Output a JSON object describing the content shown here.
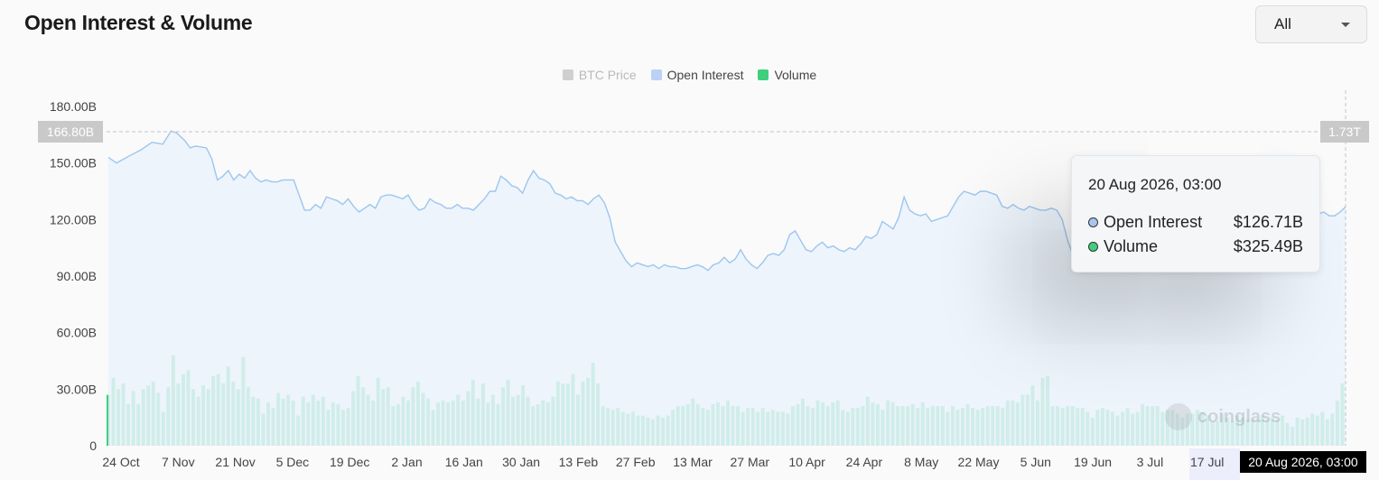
{
  "header": {
    "title": "Open Interest & Volume"
  },
  "range_select": {
    "value": "All",
    "caret_icon": "chevron-down-icon"
  },
  "legend": [
    {
      "label": "BTC Price",
      "color": "#cfcfcf",
      "text_color": "#b9b9b9"
    },
    {
      "label": "Open Interest",
      "color": "#bcd1f5",
      "text_color": "#444444"
    },
    {
      "label": "Volume",
      "color": "#3fcf7d",
      "text_color": "#444444"
    }
  ],
  "tooltip": {
    "date": "20 Aug 2026, 03:00",
    "rows": [
      {
        "label": "Open Interest",
        "value": "$126.71B",
        "dot_color": "#a9c4ef"
      },
      {
        "label": "Volume",
        "value": "$325.49B",
        "dot_color": "#3fcf7d"
      }
    ]
  },
  "crosshair": {
    "left_value": "166.80B",
    "right_value": "1.73T",
    "date": "20 Aug 2026, 03:00"
  },
  "watermark": {
    "text": "coinglass"
  },
  "chart_data": {
    "type": "line",
    "title": "Open Interest & Volume",
    "ylim": [
      0,
      180
    ],
    "y_ticks": [
      "0",
      "30.00B",
      "60.00B",
      "90.00B",
      "120.00B",
      "150.00B",
      "180.00B"
    ],
    "x_ticks": [
      "24 Oct",
      "7 Nov",
      "21 Nov",
      "5 Dec",
      "19 Dec",
      "2 Jan",
      "16 Jan",
      "30 Jan",
      "13 Feb",
      "27 Feb",
      "13 Mar",
      "27 Mar",
      "10 Apr",
      "24 Apr",
      "8 May",
      "22 May",
      "5 Jun",
      "19 Jun",
      "3 Jul",
      "17 Jul"
    ],
    "grid": false,
    "legend_position": "top-center",
    "series": [
      {
        "name": "Open Interest",
        "color": "#9cc6ef",
        "fill": "#eaf2fb",
        "points": [
          [
            0,
            153
          ],
          [
            1.5,
            150
          ],
          [
            4,
            154
          ],
          [
            6,
            157
          ],
          [
            8,
            161
          ],
          [
            10,
            160
          ],
          [
            11.5,
            167
          ],
          [
            12.5,
            166
          ],
          [
            14,
            162
          ],
          [
            15,
            158
          ],
          [
            16,
            159
          ],
          [
            18,
            158
          ],
          [
            19,
            152
          ],
          [
            20,
            141
          ],
          [
            21,
            143
          ],
          [
            22,
            146
          ],
          [
            23,
            141
          ],
          [
            24,
            144
          ],
          [
            25,
            142
          ],
          [
            26,
            146
          ],
          [
            27,
            142
          ],
          [
            28,
            140
          ],
          [
            29,
            141
          ],
          [
            30,
            140
          ],
          [
            31,
            140
          ],
          [
            32,
            141
          ],
          [
            34,
            141
          ],
          [
            35,
            133
          ],
          [
            36,
            125
          ],
          [
            37,
            125
          ],
          [
            38,
            128
          ],
          [
            39,
            126
          ],
          [
            40,
            132
          ],
          [
            41,
            131
          ],
          [
            42,
            130
          ],
          [
            43,
            128
          ],
          [
            44,
            131
          ],
          [
            45,
            127
          ],
          [
            46,
            124
          ],
          [
            47,
            126
          ],
          [
            48,
            128
          ],
          [
            49,
            126
          ],
          [
            50,
            132
          ],
          [
            51,
            133
          ],
          [
            52,
            133
          ],
          [
            53,
            132
          ],
          [
            54,
            131
          ],
          [
            55,
            133
          ],
          [
            56,
            128
          ],
          [
            57,
            125
          ],
          [
            58,
            126
          ],
          [
            59,
            131
          ],
          [
            60,
            129
          ],
          [
            61,
            128
          ],
          [
            62,
            126
          ],
          [
            63,
            126
          ],
          [
            64,
            128
          ],
          [
            65,
            126
          ],
          [
            66,
            126
          ],
          [
            67,
            125
          ],
          [
            68,
            128
          ],
          [
            69,
            131
          ],
          [
            70,
            135
          ],
          [
            71,
            135
          ],
          [
            72,
            143
          ],
          [
            73,
            141
          ],
          [
            74,
            138
          ],
          [
            75,
            137
          ],
          [
            76,
            134
          ],
          [
            77,
            141
          ],
          [
            78,
            146
          ],
          [
            79,
            142
          ],
          [
            80,
            141
          ],
          [
            81,
            139
          ],
          [
            82,
            134
          ],
          [
            83,
            133
          ],
          [
            84,
            131
          ],
          [
            85,
            132
          ],
          [
            86,
            130
          ],
          [
            87,
            130
          ],
          [
            88,
            128
          ],
          [
            89,
            131
          ],
          [
            90,
            133
          ],
          [
            91,
            129
          ],
          [
            92,
            121
          ],
          [
            93,
            108
          ],
          [
            94,
            103
          ],
          [
            95,
            98
          ],
          [
            96,
            95
          ],
          [
            97,
            97
          ],
          [
            98,
            96
          ],
          [
            99,
            95
          ],
          [
            100,
            96
          ],
          [
            101,
            94
          ],
          [
            102,
            96
          ],
          [
            103,
            95
          ],
          [
            104,
            95
          ],
          [
            105,
            94
          ],
          [
            106,
            94
          ],
          [
            107,
            95
          ],
          [
            108,
            96
          ],
          [
            109,
            95
          ],
          [
            110,
            93
          ],
          [
            111,
            96
          ],
          [
            112,
            97
          ],
          [
            113,
            100
          ],
          [
            114,
            97
          ],
          [
            115,
            99
          ],
          [
            116,
            104
          ],
          [
            117,
            99
          ],
          [
            118,
            96
          ],
          [
            119,
            94
          ],
          [
            120,
            97
          ],
          [
            121,
            101
          ],
          [
            122,
            102
          ],
          [
            123,
            101
          ],
          [
            124,
            104
          ],
          [
            125,
            112
          ],
          [
            126,
            114
          ],
          [
            127,
            109
          ],
          [
            128,
            104
          ],
          [
            129,
            103
          ],
          [
            130,
            106
          ],
          [
            131,
            108
          ],
          [
            132,
            105
          ],
          [
            133,
            106
          ],
          [
            134,
            104
          ],
          [
            135,
            103
          ],
          [
            136,
            105
          ],
          [
            137,
            104
          ],
          [
            138,
            107
          ],
          [
            139,
            111
          ],
          [
            140,
            110
          ],
          [
            141,
            112
          ],
          [
            142,
            119
          ],
          [
            143,
            117
          ],
          [
            144,
            115
          ],
          [
            145,
            121
          ],
          [
            146,
            132
          ],
          [
            147,
            125
          ],
          [
            148,
            123
          ],
          [
            149,
            122
          ],
          [
            150,
            123
          ],
          [
            151,
            119
          ],
          [
            152,
            120
          ],
          [
            153,
            121
          ],
          [
            154,
            122
          ],
          [
            155,
            127
          ],
          [
            156,
            132
          ],
          [
            157,
            135
          ],
          [
            158,
            134
          ],
          [
            159,
            133
          ],
          [
            160,
            135
          ],
          [
            161,
            135
          ],
          [
            162,
            134
          ],
          [
            163,
            133
          ],
          [
            164,
            127
          ],
          [
            165,
            126
          ],
          [
            166,
            128
          ],
          [
            167,
            126
          ],
          [
            168,
            125
          ],
          [
            169,
            127
          ],
          [
            170,
            126
          ],
          [
            171,
            125
          ],
          [
            172,
            125
          ],
          [
            173,
            126
          ],
          [
            174,
            125
          ],
          [
            175,
            120
          ],
          [
            176,
            109
          ],
          [
            177,
            101
          ],
          [
            178,
            102
          ],
          [
            179,
            101
          ],
          [
            180,
            104
          ],
          [
            181,
            103
          ],
          [
            182,
            104
          ],
          [
            183,
            106
          ],
          [
            184,
            108
          ],
          [
            185,
            110
          ],
          [
            186,
            112
          ],
          [
            187,
            113
          ],
          [
            188,
            115
          ],
          [
            189,
            117
          ],
          [
            190,
            118
          ],
          [
            191,
            117
          ],
          [
            192,
            119
          ],
          [
            193,
            120
          ],
          [
            194,
            118
          ],
          [
            195,
            119
          ],
          [
            196,
            121
          ],
          [
            197,
            122
          ],
          [
            198,
            120
          ],
          [
            199,
            122
          ],
          [
            200,
            122
          ],
          [
            201,
            123
          ],
          [
            202,
            121
          ],
          [
            203,
            123
          ],
          [
            204,
            125
          ],
          [
            205,
            124
          ],
          [
            206,
            123
          ],
          [
            207,
            124
          ],
          [
            208,
            125
          ],
          [
            209,
            124
          ],
          [
            210,
            124
          ],
          [
            211,
            123
          ],
          [
            212,
            124
          ],
          [
            213,
            123
          ],
          [
            214,
            124
          ],
          [
            215,
            124
          ],
          [
            216,
            123
          ],
          [
            217,
            122
          ],
          [
            218,
            121
          ],
          [
            219,
            122
          ],
          [
            220,
            121
          ],
          [
            221,
            122
          ],
          [
            222,
            123
          ],
          [
            223,
            124
          ],
          [
            224,
            122
          ],
          [
            225,
            122
          ],
          [
            226,
            124
          ],
          [
            227,
            126.71
          ]
        ]
      },
      {
        "name": "Volume",
        "color": "#3fcf7d",
        "values": [
          27,
          36,
          30,
          33,
          22,
          29,
          22,
          30,
          32,
          34,
          28,
          18,
          31,
          48,
          33,
          38,
          40,
          30,
          26,
          32,
          30,
          37,
          38,
          33,
          42,
          34,
          30,
          47,
          31,
          26,
          25,
          17,
          23,
          20,
          28,
          25,
          27,
          24,
          16,
          26,
          23,
          27,
          24,
          26,
          19,
          23,
          22,
          19,
          20,
          29,
          37,
          31,
          27,
          24,
          36,
          30,
          31,
          21,
          22,
          26,
          24,
          31,
          34,
          28,
          25,
          19,
          23,
          24,
          23,
          24,
          27,
          24,
          29,
          35,
          25,
          33,
          23,
          27,
          22,
          31,
          35,
          26,
          27,
          32,
          26,
          21,
          22,
          24,
          23,
          26,
          34,
          33,
          33,
          38,
          27,
          34,
          36,
          44,
          33,
          21,
          20,
          19,
          20,
          18,
          17,
          18,
          16,
          16,
          15,
          14,
          16,
          15,
          16,
          19,
          21,
          21,
          22,
          25,
          22,
          20,
          19,
          22,
          23,
          21,
          24,
          21,
          21,
          18,
          20,
          20,
          18,
          20,
          18,
          19,
          18,
          18,
          17,
          21,
          22,
          25,
          21,
          20,
          24,
          23,
          21,
          23,
          24,
          19,
          18,
          20,
          20,
          21,
          26,
          23,
          22,
          19,
          24,
          23,
          21,
          21,
          21,
          22,
          20,
          23,
          20,
          21,
          21,
          21,
          18,
          21,
          19,
          20,
          22,
          20,
          19,
          20,
          21,
          21,
          21,
          20,
          24,
          24,
          23,
          27,
          27,
          32,
          24,
          36,
          37,
          21,
          21,
          20,
          21,
          21,
          20,
          20,
          18,
          15,
          19,
          20,
          19,
          18,
          16,
          18,
          20,
          17,
          18,
          22,
          21,
          21,
          21,
          18,
          19,
          19,
          17,
          15,
          17,
          17,
          19,
          18,
          16,
          13,
          13,
          17,
          15,
          13,
          16,
          15,
          14,
          14,
          14,
          16,
          14,
          15,
          14,
          16,
          12,
          10,
          15,
          14,
          15,
          17,
          16,
          18,
          14,
          17,
          24,
          33
        ]
      }
    ]
  }
}
